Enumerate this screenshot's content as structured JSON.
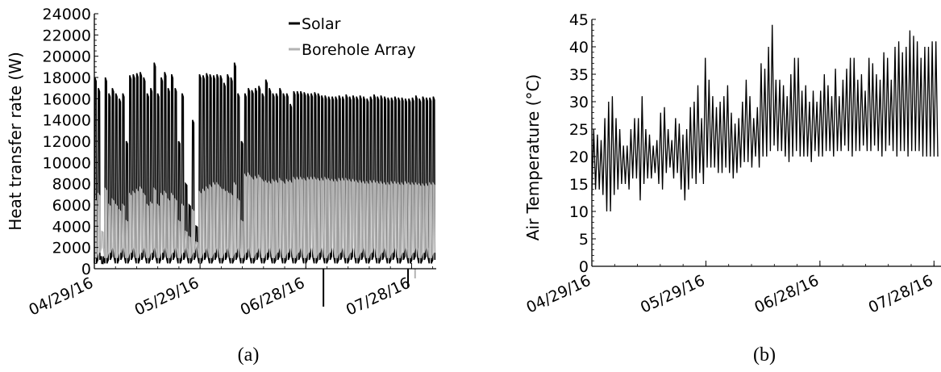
{
  "chart_data": [
    {
      "type": "line",
      "caption": "(a)",
      "ylabel": "Heat transfer rate (W)",
      "ylim": [
        0,
        24000
      ],
      "yticks": [
        "0",
        "2000",
        "4000",
        "6000",
        "8000",
        "10000",
        "12000",
        "14000",
        "16000",
        "18000",
        "20000",
        "22000",
        "24000"
      ],
      "xticks": [
        "04/29/16",
        "05/29/16",
        "06/28/16",
        "07/28/16"
      ],
      "x_range": [
        "04/29/16",
        "08/04/16"
      ],
      "legend_position": "top-right",
      "series": [
        {
          "name": "Solar",
          "color": "#000000",
          "daily_peak_approx": [
            18000,
            17000,
            500,
            18000,
            16500,
            17000,
            16500,
            16000,
            16500,
            12000,
            18200,
            18300,
            18400,
            18500,
            18000,
            16500,
            17000,
            19400,
            16500,
            18000,
            18500,
            17000,
            18300,
            17000,
            12000,
            16500,
            8000,
            6000,
            14000,
            4000,
            18300,
            18200,
            18400,
            18300,
            18200,
            18300,
            18200,
            17500,
            18300,
            18000,
            19400,
            16500,
            12000,
            16500,
            17000,
            16800,
            17000,
            17200,
            16500,
            17800,
            17000,
            16500,
            16500,
            17000,
            16500,
            16500,
            15500,
            16700,
            16700,
            16700,
            16600,
            16500,
            16500,
            16600,
            16500,
            16300,
            16300,
            16200,
            16200,
            16200,
            16300,
            16200,
            16400,
            16200,
            16300,
            16200,
            16300,
            16200,
            16000,
            16200,
            16400,
            16200,
            16300,
            16200,
            16100,
            16100,
            16200,
            16100,
            16100,
            16000,
            16000,
            16100,
            16300,
            16000,
            16200,
            16100,
            16100,
            16200
          ]
        },
        {
          "name": "Borehole Array",
          "color": "#b3b3b3",
          "daily_peak_approx": [
            6500,
            7000,
            3500,
            7500,
            6000,
            6500,
            6000,
            5500,
            6000,
            4500,
            7000,
            7200,
            7400,
            7600,
            7000,
            6000,
            6200,
            7500,
            6000,
            7000,
            7200,
            6500,
            7000,
            6500,
            4500,
            6000,
            3500,
            3000,
            5500,
            2500,
            7200,
            7400,
            7600,
            7800,
            8000,
            8000,
            7600,
            7400,
            7200,
            7000,
            8000,
            6500,
            4500,
            8800,
            8900,
            8500,
            8600,
            8700,
            8300,
            8200,
            8100,
            8300,
            8200,
            8400,
            8100,
            8300,
            8200,
            8500,
            8500,
            8500,
            8400,
            8500,
            8500,
            8500,
            8400,
            8400,
            8500,
            8400,
            8300,
            8300,
            8400,
            8400,
            8400,
            8300,
            8300,
            8200,
            8200,
            8100,
            8100,
            8200,
            8200,
            8100,
            8100,
            8000,
            8000,
            8100,
            8100,
            8000,
            8000,
            8100,
            8000,
            8000,
            8000,
            7900,
            7900,
            7900,
            8000,
            8000
          ]
        }
      ]
    },
    {
      "type": "line",
      "caption": "(b)",
      "ylabel": "Air Temperature (°C)",
      "ylim": [
        0,
        45
      ],
      "yticks": [
        "0",
        "5",
        "10",
        "15",
        "20",
        "25",
        "30",
        "35",
        "40",
        "45"
      ],
      "xticks": [
        "04/29/16",
        "05/29/16",
        "06/28/16",
        "07/28/16"
      ],
      "x_range": [
        "04/29/16",
        "07/30/16"
      ],
      "series": [
        {
          "name": "",
          "color": "#000000",
          "daily_max_approx": [
            25,
            24,
            23,
            27,
            30,
            31,
            27,
            25,
            22,
            22,
            25,
            27,
            27,
            31,
            25,
            24,
            22,
            23,
            28,
            29,
            25,
            23,
            27,
            26,
            24,
            25,
            29,
            30,
            33,
            27,
            38,
            34,
            31,
            29,
            30,
            31,
            33,
            28,
            26,
            27,
            30,
            34,
            31,
            27,
            29,
            37,
            36,
            40,
            44,
            34,
            34,
            33,
            31,
            35,
            38,
            38,
            32,
            33,
            30,
            32,
            30,
            32,
            35,
            33,
            31,
            36,
            31,
            34,
            36,
            38,
            38,
            34,
            35,
            32,
            38,
            37,
            35,
            34,
            39,
            38,
            34,
            40,
            41,
            39,
            40,
            43,
            42,
            41,
            38,
            40,
            40,
            41,
            41
          ],
          "daily_min_approx": [
            13,
            14,
            14,
            13,
            10,
            10,
            13,
            14,
            15,
            15,
            14,
            16,
            16,
            12,
            15,
            16,
            16,
            17,
            15,
            14,
            17,
            18,
            16,
            17,
            14,
            12,
            14,
            16,
            15,
            17,
            15,
            18,
            18,
            18,
            17,
            17,
            18,
            17,
            16,
            17,
            18,
            19,
            19,
            18,
            20,
            18,
            20,
            20,
            21,
            22,
            21,
            21,
            20,
            19,
            20,
            21,
            20,
            20,
            20,
            19,
            21,
            20,
            20,
            21,
            21,
            20,
            21,
            21,
            22,
            21,
            20,
            21,
            21,
            22,
            21,
            21,
            22,
            21,
            20,
            21,
            22,
            21,
            20,
            21,
            21,
            20,
            21,
            21,
            21,
            20,
            20,
            20,
            20
          ]
        }
      ]
    }
  ]
}
